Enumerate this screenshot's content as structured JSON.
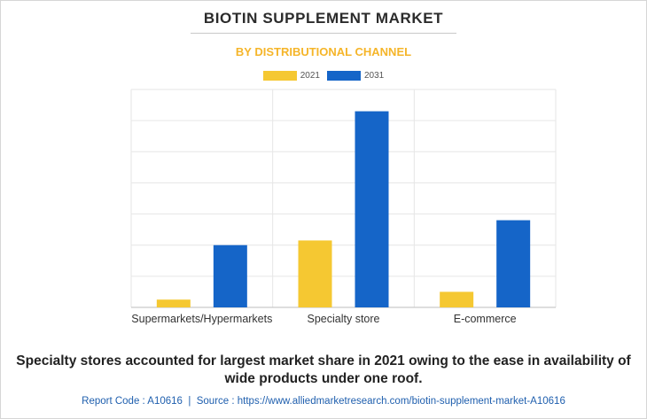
{
  "chart_data": {
    "type": "bar",
    "title": "BIOTIN SUPPLEMENT MARKET",
    "subtitle": "BY DISTRIBUTIONAL CHANNEL",
    "categories": [
      "Supermarkets/Hypermarkets",
      "Specialty store",
      "E-commerce"
    ],
    "series": [
      {
        "name": "2021",
        "color": "#f5c832",
        "values": [
          0.25,
          2.15,
          0.5
        ]
      },
      {
        "name": "2031",
        "color": "#1565c8",
        "values": [
          2.0,
          6.3,
          2.8
        ]
      }
    ],
    "ylim": [
      0,
      7
    ],
    "yticks": [
      0,
      1,
      2,
      3,
      4,
      5,
      6,
      7
    ],
    "grid": true,
    "legend_position": "top-center"
  },
  "caption": "Specialty stores accounted for largest market share in 2021 owing to the ease in availability of wide products under one roof.",
  "footer": {
    "report_code": "Report Code : A10616",
    "separator": "|",
    "source": "Source : https://www.alliedmarketresearch.com/biotin-supplement-market-A10616"
  },
  "colors": {
    "accent": "#f5b529",
    "link": "#1f5fae"
  }
}
